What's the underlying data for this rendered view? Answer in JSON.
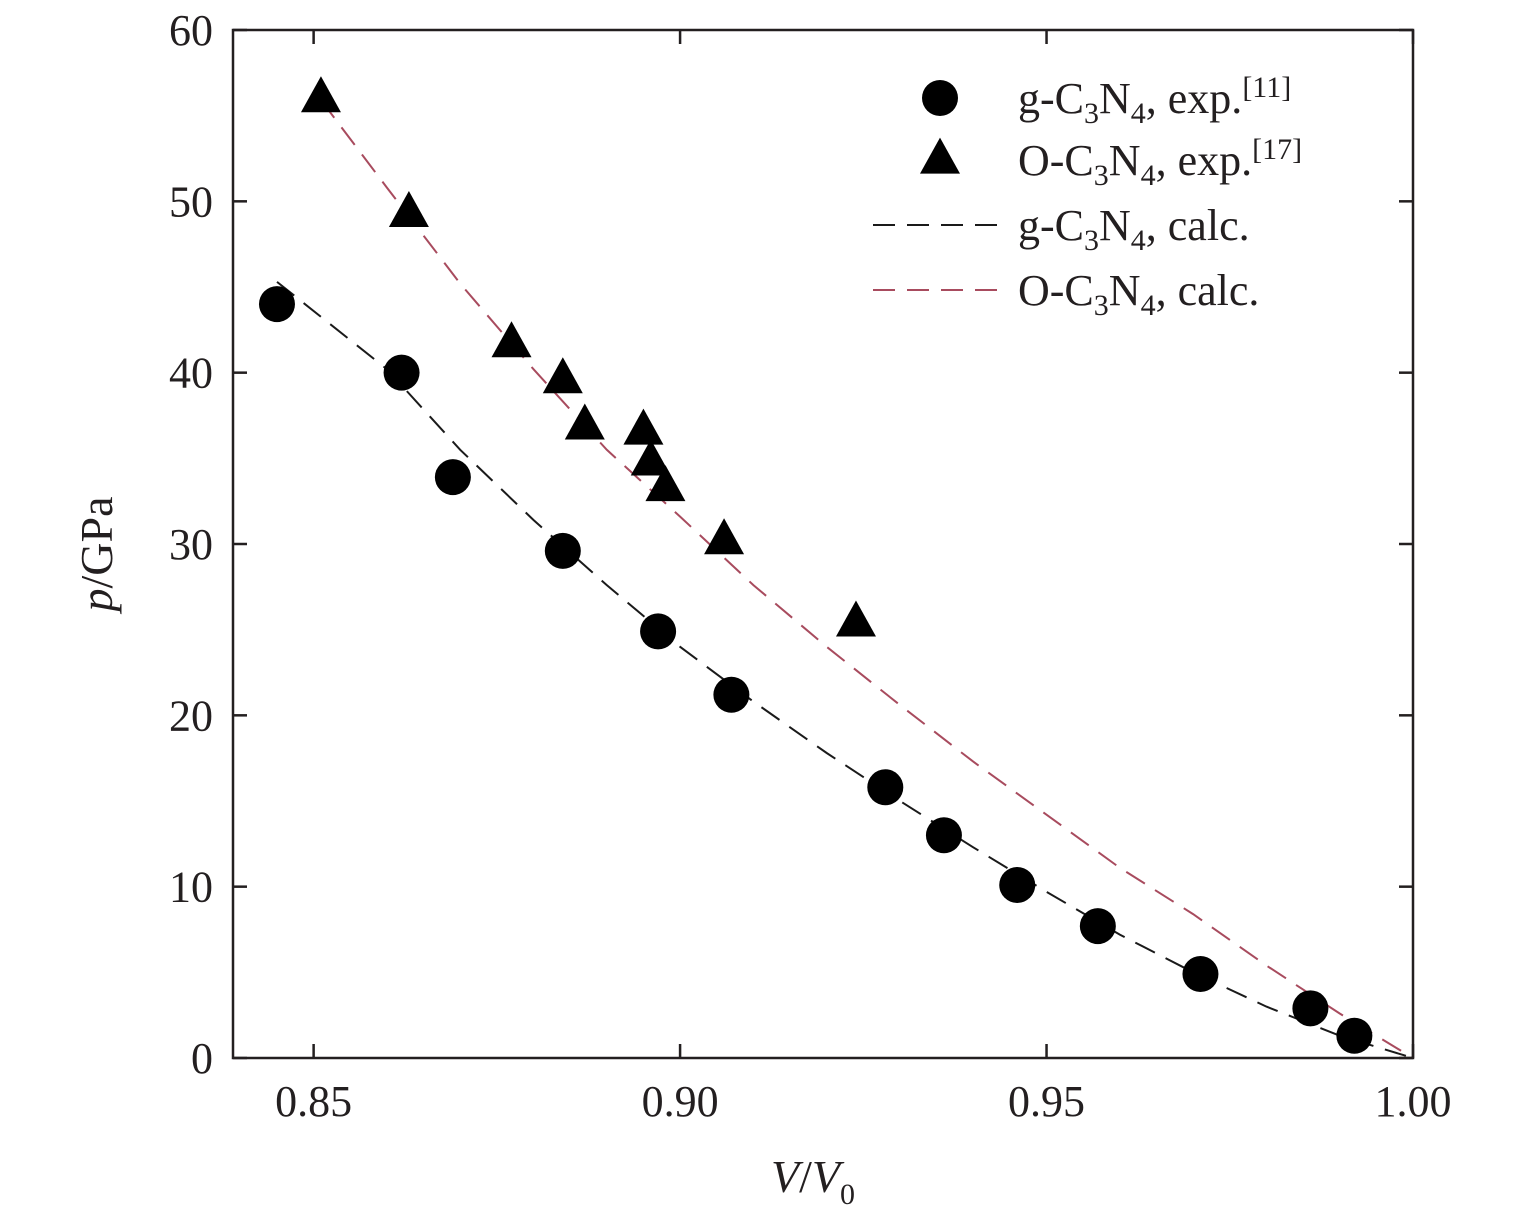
{
  "chart_data": {
    "type": "scatter",
    "xlabel": {
      "main": "V",
      "sep": "/",
      "main2": "V",
      "sub": "0"
    },
    "ylabel": {
      "main": "p",
      "rest": "/GPa"
    },
    "xlim": [
      0.839,
      1.0
    ],
    "ylim": [
      0,
      60
    ],
    "x_ticks": [
      0.85,
      0.9,
      0.95,
      1.0
    ],
    "x_tick_labels": [
      "0.85",
      "0.90",
      "0.95",
      "1.00"
    ],
    "y_ticks": [
      0,
      10,
      20,
      30,
      40,
      50,
      60
    ],
    "y_tick_labels": [
      "0",
      "10",
      "20",
      "30",
      "40",
      "50",
      "60"
    ],
    "grid": false,
    "legend_position": "top-right",
    "series": [
      {
        "name": "g-C3N4, exp.[11]",
        "label_parts": {
          "a": "g-C",
          "s1": "3",
          "b": "N",
          "s2": "4",
          "c": ", exp.",
          "sup": "[11]"
        },
        "kind": "points",
        "marker": "circle",
        "color": "#000000",
        "x": [
          0.845,
          0.862,
          0.869,
          0.884,
          0.897,
          0.907,
          0.928,
          0.936,
          0.946,
          0.957,
          0.971,
          0.986,
          0.992
        ],
        "y": [
          44.0,
          40.0,
          33.9,
          29.6,
          24.9,
          21.2,
          15.8,
          13.0,
          10.1,
          7.7,
          4.9,
          2.9,
          1.3
        ]
      },
      {
        "name": "O-C3N4, exp.[17]",
        "label_parts": {
          "a": "O-C",
          "s1": "3",
          "b": "N",
          "s2": "4",
          "c": ", exp.",
          "sup": "[17]"
        },
        "kind": "points",
        "marker": "triangle",
        "color": "#000000",
        "x": [
          0.851,
          0.863,
          0.877,
          0.884,
          0.887,
          0.895,
          0.896,
          0.898,
          0.906,
          0.924
        ],
        "y": [
          56.0,
          49.3,
          41.7,
          39.6,
          36.9,
          36.6,
          34.8,
          33.3,
          30.2,
          25.4
        ]
      },
      {
        "name": "g-C3N4, calc.",
        "label_parts": {
          "a": "g-C",
          "s1": "3",
          "b": "N",
          "s2": "4",
          "c": ", calc.",
          "sup": ""
        },
        "kind": "line",
        "dash": "dashed",
        "color": "#1a1a1a",
        "x": [
          0.845,
          0.86,
          0.87,
          0.88,
          0.89,
          0.9,
          0.91,
          0.92,
          0.93,
          0.94,
          0.95,
          0.96,
          0.97,
          0.98,
          0.99,
          1.0
        ],
        "y": [
          45.3,
          40.2,
          35.5,
          31.4,
          27.6,
          24.0,
          20.8,
          17.8,
          15.0,
          12.3,
          9.7,
          7.2,
          5.0,
          3.0,
          1.3,
          0.0
        ]
      },
      {
        "name": "O-C3N4, calc.",
        "label_parts": {
          "a": "O-C",
          "s1": "3",
          "b": "N",
          "s2": "4",
          "c": ", calc.",
          "sup": ""
        },
        "kind": "line",
        "dash": "dashed",
        "color": "#a84b5e",
        "x": [
          0.851,
          0.86,
          0.87,
          0.88,
          0.89,
          0.9,
          0.91,
          0.92,
          0.93,
          0.94,
          0.95,
          0.96,
          0.97,
          0.98,
          0.99,
          1.0
        ],
        "y": [
          55.9,
          50.8,
          45.2,
          40.2,
          35.5,
          31.6,
          27.6,
          24.0,
          20.6,
          17.3,
          14.2,
          11.1,
          8.4,
          5.4,
          2.6,
          0.0
        ]
      }
    ]
  }
}
